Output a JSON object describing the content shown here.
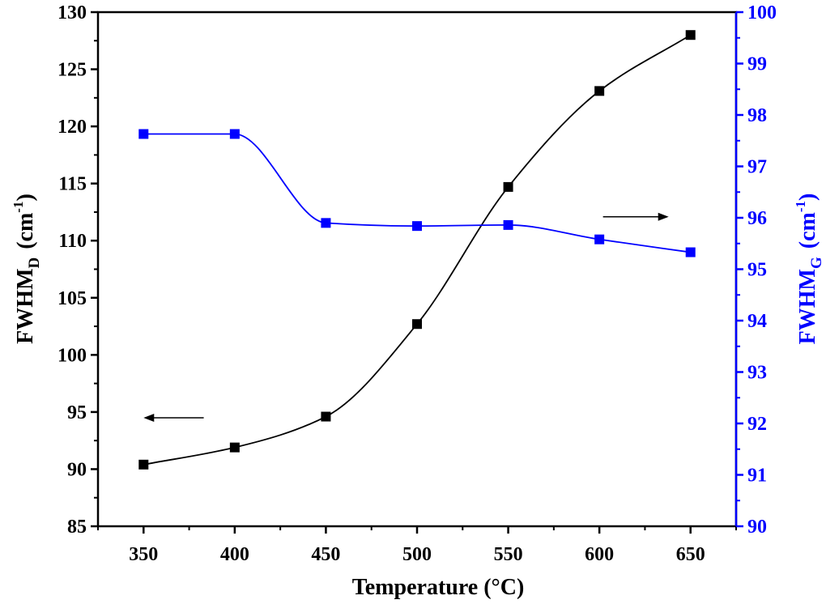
{
  "chart_data": {
    "type": "line",
    "xlabel": "Temperature (°C)",
    "ylabel_left": {
      "main": "FWHM",
      "subscript": "D",
      "unit_open": "(cm",
      "unit_sup": "-1",
      "unit_close": ")"
    },
    "ylabel_right": {
      "main": "FWHM",
      "subscript": "G",
      "unit_open": "(cm",
      "unit_sup": "-1",
      "unit_close": ")"
    },
    "xlim": [
      325,
      675
    ],
    "ylim_left": [
      85,
      130
    ],
    "ylim_right": [
      90,
      100
    ],
    "x_ticks": [
      350,
      400,
      450,
      500,
      550,
      600,
      650
    ],
    "y_left_ticks": [
      85,
      90,
      95,
      100,
      105,
      110,
      115,
      120,
      125,
      130
    ],
    "y_right_ticks": [
      90,
      91,
      92,
      93,
      94,
      95,
      96,
      97,
      98,
      99,
      100
    ],
    "grid": false,
    "series": [
      {
        "axis": "left",
        "color": "#000000",
        "marker": "square",
        "x": [
          350,
          400,
          450,
          500,
          550,
          600,
          650
        ],
        "values": [
          90.4,
          91.9,
          94.6,
          102.7,
          114.7,
          123.1,
          128.0
        ]
      },
      {
        "axis": "right",
        "color": "#0000ff",
        "marker": "square",
        "x": [
          350,
          400,
          450,
          500,
          550,
          600,
          650
        ],
        "values": [
          97.63,
          97.63,
          95.9,
          95.84,
          95.86,
          95.58,
          95.33
        ]
      }
    ],
    "annotations": [
      {
        "type": "arrow",
        "direction": "left",
        "axis": "left",
        "x_from": 383,
        "x_to": 350,
        "y": 94.5
      },
      {
        "type": "arrow",
        "direction": "right",
        "axis": "right",
        "x_from": 602,
        "x_to": 638,
        "y": 96.02
      }
    ]
  }
}
